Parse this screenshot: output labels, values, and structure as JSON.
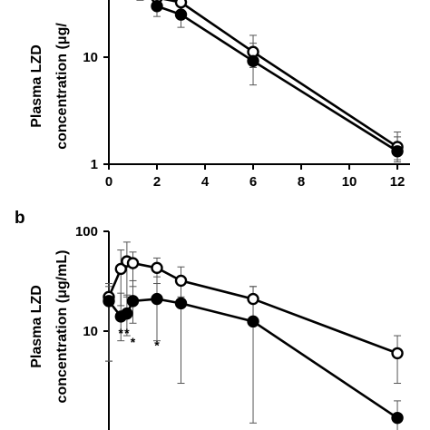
{
  "chart_data": [
    {
      "panel": "",
      "type": "line",
      "ylabel_lines": [
        "Plasma LZD",
        "concentration (μg/"
      ],
      "yscale": "log",
      "ylim": [
        1,
        40
      ],
      "xlim": [
        0,
        12.3
      ],
      "x_ticks": [
        "0",
        "2",
        "4",
        "6",
        "8",
        "10",
        "12"
      ],
      "y_ticks": [
        {
          "value": 1,
          "label": "1"
        },
        {
          "value": 10,
          "label": "10"
        }
      ],
      "series": [
        {
          "marker": "open-circle",
          "points": [
            {
              "x": 2,
              "y": 36,
              "lo": 32,
              "hi": 40
            },
            {
              "x": 3,
              "y": 32.5,
              "lo": 27,
              "hi": 38
            },
            {
              "x": 6,
              "y": 11.2,
              "lo": 8,
              "hi": 16
            },
            {
              "x": 12,
              "y": 1.45,
              "lo": 1.1,
              "hi": 2.0
            }
          ]
        },
        {
          "marker": "filled-circle",
          "points": [
            {
              "x": 2,
              "y": 30,
              "lo": 24,
              "hi": 36
            },
            {
              "x": 3,
              "y": 25,
              "lo": 19,
              "hi": 31
            },
            {
              "x": 6,
              "y": 9.2,
              "lo": 5.5,
              "hi": 13.5
            },
            {
              "x": 12,
              "y": 1.32,
              "lo": 1.05,
              "hi": 1.8
            }
          ]
        }
      ],
      "extra_error_stems": [
        {
          "x": 1.3,
          "lo": 34,
          "hi": 40
        }
      ],
      "annotations": []
    },
    {
      "panel": "b",
      "type": "line",
      "ylabel_lines": [
        "Plasma LZD",
        "concentration (μg/mL)"
      ],
      "yscale": "log",
      "ylim": [
        1,
        100
      ],
      "xlim": [
        0,
        12.3
      ],
      "x_ticks": [],
      "y_ticks": [
        {
          "value": 10,
          "label": "10"
        },
        {
          "value": 100,
          "label": "100"
        }
      ],
      "series": [
        {
          "marker": "open-circle",
          "points": [
            {
              "x": 0,
              "y": 22,
              "lo": 5,
              "hi": 30
            },
            {
              "x": 0.5,
              "y": 42,
              "lo": 18,
              "hi": 65
            },
            {
              "x": 0.75,
              "y": 50,
              "lo": 22,
              "hi": 78
            },
            {
              "x": 1,
              "y": 48,
              "lo": 28,
              "hi": 62
            },
            {
              "x": 2,
              "y": 43,
              "lo": 30,
              "hi": 54
            },
            {
              "x": 3,
              "y": 32,
              "lo": 22,
              "hi": 44
            },
            {
              "x": 6,
              "y": 21,
              "lo": 12,
              "hi": 28
            },
            {
              "x": 12,
              "y": 6,
              "lo": 3,
              "hi": 9
            }
          ]
        },
        {
          "marker": "filled-circle",
          "points": [
            {
              "x": 0,
              "y": 20,
              "lo": 5,
              "hi": 28
            },
            {
              "x": 0.5,
              "y": 14,
              "lo": 8,
              "hi": 24
            },
            {
              "x": 0.75,
              "y": 15,
              "lo": 9,
              "hi": 23
            },
            {
              "x": 1,
              "y": 20,
              "lo": 12,
              "hi": 32
            },
            {
              "x": 2,
              "y": 21,
              "lo": 8,
              "hi": 35
            },
            {
              "x": 3,
              "y": 19,
              "lo": 3,
              "hi": 35
            },
            {
              "x": 6,
              "y": 12.5,
              "lo": 1.2,
              "hi": 28
            },
            {
              "x": 12,
              "y": 1.35,
              "lo": 1.0,
              "hi": 2.0
            }
          ]
        }
      ],
      "annotations": [
        {
          "x": 0.5,
          "y": 8.6,
          "text": "*"
        },
        {
          "x": 0.75,
          "y": 8.6,
          "text": "*"
        },
        {
          "x": 1.0,
          "y": 7.0,
          "text": "*"
        },
        {
          "x": 2.0,
          "y": 6.5,
          "text": "*"
        }
      ]
    }
  ]
}
